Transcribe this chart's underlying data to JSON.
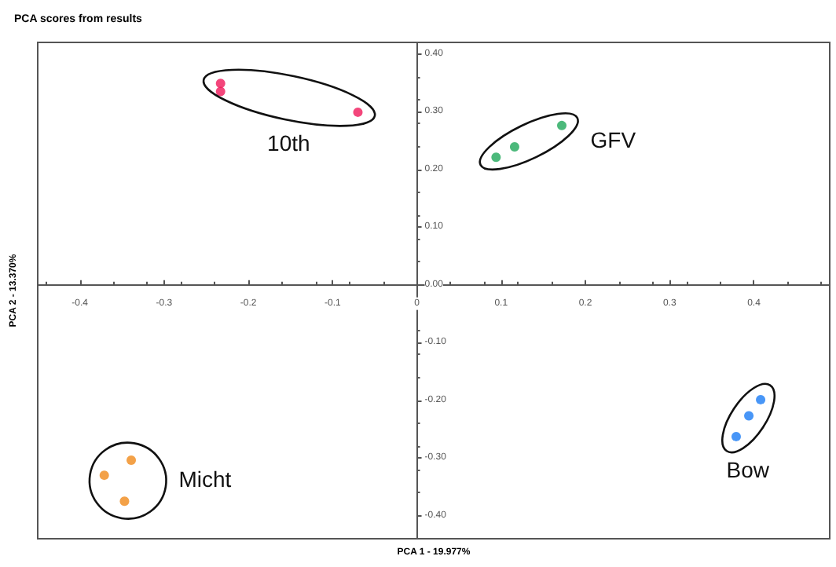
{
  "chart_data": {
    "type": "scatter",
    "title": "PCA scores from results",
    "xlabel": "PCA 1 - 19.977%",
    "ylabel": "PCA 2 - 13.370%",
    "xlim": [
      -0.45,
      0.49
    ],
    "ylim": [
      -0.44,
      0.42
    ],
    "xticks": [
      -0.4,
      -0.3,
      -0.2,
      -0.1,
      0,
      0.1,
      0.2,
      0.3,
      0.4
    ],
    "yticks": [
      {
        "value": -0.4,
        "label": "-0.40"
      },
      {
        "value": -0.3,
        "label": "-0.30"
      },
      {
        "value": -0.2,
        "label": "-0.20"
      },
      {
        "value": -0.1,
        "label": "-0.10"
      },
      {
        "value": 0,
        "label": "0.00"
      },
      {
        "value": 0.1,
        "label": "0.10"
      },
      {
        "value": 0.2,
        "label": "0.20"
      },
      {
        "value": 0.3,
        "label": "0.30"
      },
      {
        "value": 0.4,
        "label": "0.40"
      }
    ],
    "grid": false,
    "legend": false,
    "marker": "circle",
    "series": [
      {
        "name": "10th",
        "color": "#f0185a",
        "x": [
          -0.233,
          -0.233,
          -0.07
        ],
        "values": [
          0.349,
          0.335,
          0.299
        ]
      },
      {
        "name": "GFV",
        "color": "#1fa85a",
        "x": [
          0.094,
          0.116,
          0.172
        ],
        "values": [
          0.221,
          0.239,
          0.276
        ]
      },
      {
        "name": "Micht",
        "color": "#f08a1a",
        "x": [
          -0.339,
          -0.371,
          -0.347
        ],
        "values": [
          -0.304,
          -0.33,
          -0.375
        ]
      },
      {
        "name": "Bow",
        "color": "#1a7cf5",
        "x": [
          0.408,
          0.394,
          0.379
        ],
        "values": [
          -0.199,
          -0.227,
          -0.263
        ]
      }
    ]
  }
}
